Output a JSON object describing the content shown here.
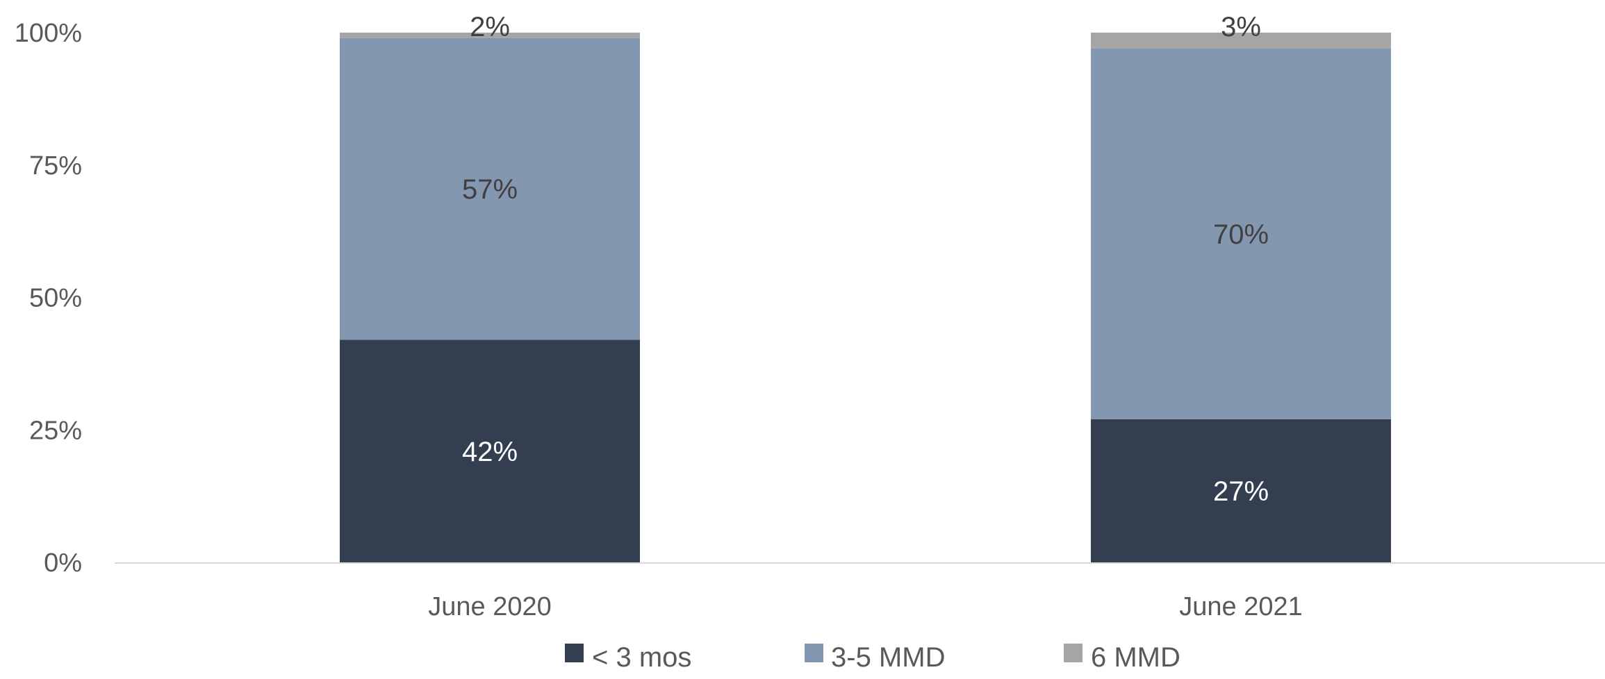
{
  "chart_data": {
    "type": "bar",
    "stacked": true,
    "categories": [
      "June 2020",
      "June 2021"
    ],
    "series": [
      {
        "name": "< 3 mos",
        "values": [
          42,
          27
        ],
        "color": "#333F50",
        "label_color": "#FFFFFF",
        "labels": [
          "42%",
          "27%"
        ]
      },
      {
        "name": "3-5 MMD",
        "values": [
          57,
          70
        ],
        "color": "#8497B0",
        "label_color": "#404040",
        "labels": [
          "57%",
          "70%"
        ]
      },
      {
        "name": "6 MMD",
        "values": [
          2,
          3
        ],
        "color": "#A5A5A5",
        "label_color": "#404040",
        "labels": [
          "2%",
          "3%"
        ]
      }
    ],
    "y_ticks": [
      {
        "value": 0,
        "label": "0%"
      },
      {
        "value": 25,
        "label": "25%"
      },
      {
        "value": 50,
        "label": "50%"
      },
      {
        "value": 75,
        "label": "75%"
      },
      {
        "value": 100,
        "label": "100%"
      }
    ],
    "ylim": [
      0,
      100
    ],
    "grid": false,
    "legend_position": "bottom",
    "axis_color": "#D9D9D9"
  }
}
